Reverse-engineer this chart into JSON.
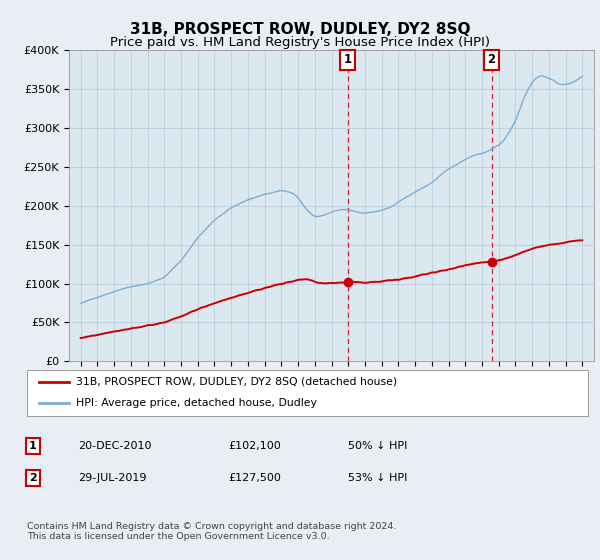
{
  "title": "31B, PROSPECT ROW, DUDLEY, DY2 8SQ",
  "subtitle": "Price paid vs. HM Land Registry's House Price Index (HPI)",
  "ylabel_ticks": [
    "£0",
    "£50K",
    "£100K",
    "£150K",
    "£200K",
    "£250K",
    "£300K",
    "£350K",
    "£400K"
  ],
  "ylim": [
    0,
    400000
  ],
  "yticks": [
    0,
    50000,
    100000,
    150000,
    200000,
    250000,
    300000,
    350000,
    400000
  ],
  "hpi_color": "#7aaed6",
  "price_color": "#cc0000",
  "vline_color": "#cc0000",
  "marker1_year": 2010.97,
  "marker1_price": 102100,
  "marker2_year": 2019.58,
  "marker2_price": 127500,
  "legend_label1": "31B, PROSPECT ROW, DUDLEY, DY2 8SQ (detached house)",
  "legend_label2": "HPI: Average price, detached house, Dudley",
  "table_row1": [
    "1",
    "20-DEC-2010",
    "£102,100",
    "50% ↓ HPI"
  ],
  "table_row2": [
    "2",
    "29-JUL-2019",
    "£127,500",
    "53% ↓ HPI"
  ],
  "footer": "Contains HM Land Registry data © Crown copyright and database right 2024.\nThis data is licensed under the Open Government Licence v3.0.",
  "bg_color": "#e8eef4",
  "plot_bg_color": "#dce8f0",
  "title_fontsize": 11,
  "subtitle_fontsize": 9.5
}
